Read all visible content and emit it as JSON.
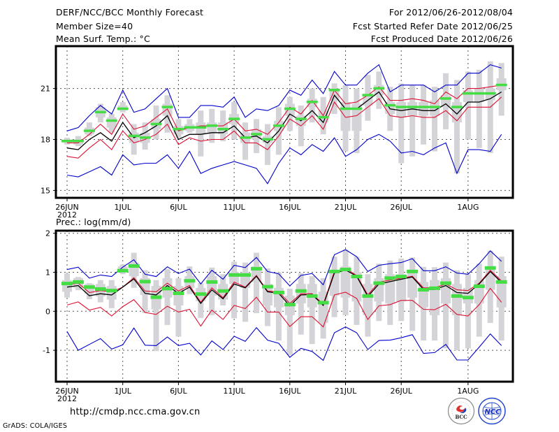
{
  "header": {
    "title": "DERF/NCC/BCC Monthly Forecast",
    "member_size": "Member Size=40",
    "variable_top": "Mean Surf. Temp.: °C",
    "period": "For 2012/06/26-2012/08/04",
    "started": "Fcst Started Refer Date 2012/06/25",
    "produced": "Fcst Produced Date 2012/06/26"
  },
  "footer": {
    "url": "http://cmdp.ncc.cma.gov.cn",
    "credit": "GrADS: COLA/IGES",
    "logo_left": "BCC",
    "logo_right": "NCC"
  },
  "colors": {
    "envelope": "#0000cc",
    "spread": "#dd1133",
    "mean": "#000000",
    "marker": "#44dd44",
    "box": "#d4d4d8",
    "grid": "#555555"
  },
  "chart_data": [
    {
      "type": "line",
      "title": "Mean Surf. Temp.: °C",
      "xlabel": "",
      "ylabel": "",
      "x_start": "2012-06-26",
      "n_days": 40,
      "x_ticks": [
        {
          "day": 0,
          "label": "26JUN",
          "sub": "2012"
        },
        {
          "day": 5,
          "label": "1JUL"
        },
        {
          "day": 10,
          "label": "6JUL"
        },
        {
          "day": 15,
          "label": "11JUL"
        },
        {
          "day": 20,
          "label": "16JUL"
        },
        {
          "day": 25,
          "label": "21JUL"
        },
        {
          "day": 30,
          "label": "26JUL"
        },
        {
          "day": 36,
          "label": "1AUG"
        }
      ],
      "y_ticks": [
        15,
        18,
        21
      ],
      "ylim": [
        14.5,
        23.4
      ],
      "grid": true,
      "series": [
        {
          "name": "max",
          "color_key": "envelope",
          "values": [
            18.5,
            18.7,
            19.4,
            20.0,
            19.5,
            20.9,
            19.6,
            19.8,
            20.4,
            21.0,
            19.3,
            19.3,
            20.0,
            20.0,
            19.9,
            20.5,
            19.3,
            19.8,
            19.7,
            20.0,
            20.9,
            20.6,
            21.5,
            20.7,
            22.0,
            21.2,
            21.2,
            21.9,
            22.4,
            20.8,
            21.2,
            21.2,
            21.2,
            20.8,
            21.2,
            21.2,
            21.9,
            21.9,
            22.4,
            22.2
          ]
        },
        {
          "name": "upper",
          "color_key": "spread",
          "values": [
            17.8,
            17.8,
            18.3,
            18.9,
            18.3,
            19.5,
            18.6,
            18.8,
            19.3,
            19.8,
            18.5,
            18.7,
            18.8,
            18.8,
            18.8,
            19.2,
            18.5,
            18.6,
            18.3,
            19.0,
            19.9,
            19.5,
            20.3,
            19.4,
            20.9,
            20.1,
            20.2,
            20.6,
            21.1,
            20.3,
            20.3,
            20.4,
            20.3,
            20.1,
            20.8,
            20.4,
            21.0,
            21.0,
            21.1,
            21.2
          ]
        },
        {
          "name": "mean",
          "color_key": "mean",
          "values": [
            17.5,
            17.4,
            18.0,
            18.4,
            17.9,
            19.0,
            18.1,
            18.4,
            18.8,
            19.4,
            18.0,
            18.3,
            18.3,
            18.4,
            18.4,
            18.8,
            18.1,
            18.2,
            17.8,
            18.5,
            19.5,
            19.1,
            19.7,
            19.0,
            20.6,
            19.8,
            19.8,
            20.3,
            20.8,
            19.8,
            19.7,
            19.8,
            19.7,
            19.7,
            20.1,
            19.5,
            20.2,
            20.2,
            20.4,
            20.8
          ]
        },
        {
          "name": "lower",
          "color_key": "spread",
          "values": [
            17.0,
            16.9,
            17.5,
            18.0,
            17.4,
            18.5,
            17.8,
            18.0,
            18.3,
            18.9,
            17.7,
            18.1,
            17.9,
            18.0,
            18.0,
            18.5,
            17.8,
            17.8,
            17.4,
            18.2,
            19.2,
            18.8,
            19.4,
            18.6,
            20.2,
            19.3,
            19.4,
            19.9,
            20.4,
            19.4,
            19.3,
            19.4,
            19.3,
            19.3,
            19.7,
            19.1,
            19.9,
            19.9,
            19.9,
            20.5
          ]
        },
        {
          "name": "min",
          "color_key": "envelope",
          "values": [
            15.9,
            15.8,
            16.1,
            16.4,
            15.9,
            17.1,
            16.5,
            16.6,
            16.6,
            17.1,
            16.3,
            17.3,
            16.0,
            16.3,
            16.5,
            16.7,
            16.5,
            16.3,
            15.4,
            16.6,
            17.5,
            17.1,
            17.7,
            17.3,
            18.1,
            17.0,
            17.4,
            18.0,
            18.3,
            17.9,
            17.2,
            17.3,
            17.1,
            17.5,
            17.8,
            16.0,
            17.4,
            17.4,
            17.3,
            18.3
          ]
        },
        {
          "name": "marker",
          "color_key": "marker",
          "values": [
            17.9,
            17.9,
            18.5,
            19.6,
            19.1,
            19.8,
            18.2,
            18.1,
            18.9,
            19.9,
            18.6,
            18.7,
            18.7,
            18.8,
            18.6,
            19.2,
            18.1,
            18.3,
            18.0,
            18.8,
            19.8,
            19.2,
            20.2,
            19.3,
            20.9,
            19.8,
            19.8,
            20.6,
            21.0,
            20.0,
            19.9,
            19.9,
            19.9,
            19.9,
            20.4,
            19.9,
            20.7,
            20.7,
            20.7,
            21.2
          ]
        }
      ],
      "boxes": {
        "whisker_low": [
          17.7,
          17.6,
          18.2,
          19.0,
          18.4,
          19.6,
          17.1,
          17.4,
          18.0,
          18.4,
          18.1,
          18.4,
          17.0,
          17.8,
          17.9,
          18.0,
          16.8,
          17.2,
          16.5,
          17.1,
          18.5,
          17.6,
          19.0,
          18.3,
          19.5,
          17.3,
          17.2,
          19.1,
          19.8,
          18.5,
          16.6,
          17.0,
          17.7,
          17.3,
          18.6,
          16.0,
          18.0,
          17.5,
          17.2,
          19.4
        ],
        "box_low": [
          17.8,
          17.7,
          18.3,
          19.3,
          18.7,
          19.7,
          17.8,
          17.8,
          18.6,
          19.4,
          18.3,
          18.5,
          18.3,
          18.4,
          18.3,
          18.9,
          17.8,
          18.0,
          17.8,
          18.5,
          19.4,
          18.8,
          19.9,
          19.0,
          20.3,
          18.5,
          18.5,
          20.0,
          20.6,
          19.5,
          19.3,
          19.4,
          19.4,
          19.4,
          19.9,
          19.0,
          20.2,
          20.2,
          20.3,
          20.9
        ],
        "box_high": [
          18.0,
          18.0,
          18.7,
          19.9,
          19.3,
          20.0,
          18.4,
          18.4,
          19.2,
          20.1,
          18.8,
          18.9,
          19.0,
          19.0,
          19.0,
          19.5,
          18.4,
          18.6,
          18.2,
          19.1,
          20.1,
          19.4,
          20.4,
          19.7,
          21.0,
          20.2,
          20.1,
          20.7,
          21.2,
          20.2,
          20.2,
          20.2,
          20.2,
          20.3,
          20.6,
          20.2,
          20.9,
          21.0,
          21.0,
          21.6
        ],
        "whisker_high": [
          18.1,
          18.2,
          19.0,
          20.1,
          19.5,
          20.2,
          18.9,
          19.0,
          20.0,
          20.6,
          19.2,
          19.2,
          19.7,
          19.8,
          19.7,
          20.2,
          19.0,
          19.2,
          18.9,
          19.9,
          20.5,
          20.0,
          21.0,
          20.5,
          21.3,
          21.2,
          21.0,
          21.8,
          22.0,
          21.1,
          21.3,
          21.2,
          21.2,
          21.1,
          21.9,
          21.5,
          22.0,
          22.1,
          22.6,
          22.5
        ]
      }
    },
    {
      "type": "line",
      "title": "Prec.: log(mm/d)",
      "xlabel": "",
      "ylabel": "",
      "x_start": "2012-06-26",
      "n_days": 40,
      "x_ticks": [
        {
          "day": 0,
          "label": "26JUN",
          "sub": "2012"
        },
        {
          "day": 5,
          "label": "1JUL"
        },
        {
          "day": 10,
          "label": "6JUL"
        },
        {
          "day": 15,
          "label": "11JUL"
        },
        {
          "day": 20,
          "label": "16JUL"
        },
        {
          "day": 25,
          "label": "21JUL"
        },
        {
          "day": 30,
          "label": "26JUL"
        },
        {
          "day": 36,
          "label": "1AUG"
        }
      ],
      "y_ticks": [
        -1,
        0,
        1,
        2
      ],
      "ylim": [
        -1.8,
        2.1
      ],
      "grid": true,
      "series": [
        {
          "name": "max",
          "color_key": "envelope",
          "values": [
            1.07,
            1.13,
            0.85,
            0.93,
            0.89,
            1.13,
            1.32,
            0.95,
            0.89,
            1.14,
            0.97,
            1.08,
            0.7,
            1.05,
            0.82,
            1.18,
            1.12,
            1.38,
            1.02,
            0.96,
            0.65,
            0.92,
            0.97,
            0.68,
            1.45,
            1.58,
            1.4,
            1.02,
            1.18,
            1.22,
            1.25,
            1.35,
            1.04,
            1.04,
            1.14,
            0.98,
            0.95,
            1.22,
            1.55,
            1.28
          ]
        },
        {
          "name": "upper",
          "color_key": "spread",
          "values": [
            0.68,
            0.72,
            0.48,
            0.53,
            0.5,
            0.62,
            0.86,
            0.52,
            0.5,
            0.72,
            0.52,
            0.66,
            0.23,
            0.6,
            0.35,
            0.75,
            0.62,
            0.92,
            0.52,
            0.5,
            0.2,
            0.45,
            0.45,
            0.18,
            1.02,
            1.1,
            0.92,
            0.42,
            0.75,
            0.8,
            0.85,
            0.9,
            0.6,
            0.6,
            0.7,
            0.55,
            0.53,
            0.72,
            1.05,
            0.78
          ]
        },
        {
          "name": "mean",
          "color_key": "mean",
          "values": [
            0.62,
            0.66,
            0.4,
            0.45,
            0.42,
            0.62,
            0.83,
            0.46,
            0.42,
            0.66,
            0.46,
            0.62,
            0.2,
            0.55,
            0.32,
            0.7,
            0.6,
            0.9,
            0.5,
            0.46,
            0.14,
            0.42,
            0.43,
            0.15,
            0.98,
            1.06,
            0.9,
            0.38,
            0.7,
            0.76,
            0.82,
            0.88,
            0.56,
            0.56,
            0.66,
            0.48,
            0.46,
            0.7,
            1.02,
            0.74
          ]
        },
        {
          "name": "lower",
          "color_key": "spread",
          "values": [
            0.16,
            0.24,
            0.03,
            0.1,
            -0.12,
            0.12,
            0.3,
            -0.03,
            -0.08,
            0.13,
            -0.02,
            0.05,
            -0.38,
            0.03,
            -0.21,
            0.15,
            0.07,
            0.36,
            -0.02,
            -0.02,
            -0.39,
            -0.14,
            -0.14,
            -0.4,
            0.42,
            0.49,
            0.33,
            -0.21,
            0.14,
            0.17,
            0.28,
            0.28,
            0.05,
            0.04,
            0.18,
            -0.08,
            -0.12,
            0.17,
            0.59,
            0.23
          ]
        },
        {
          "name": "min",
          "color_key": "envelope",
          "values": [
            -0.52,
            -1.0,
            -0.85,
            -0.7,
            -0.97,
            -0.86,
            -0.43,
            -0.87,
            -0.88,
            -0.66,
            -0.88,
            -0.82,
            -1.12,
            -0.76,
            -0.98,
            -0.64,
            -0.77,
            -0.42,
            -0.74,
            -0.82,
            -1.18,
            -0.95,
            -1.03,
            -1.26,
            -0.55,
            -0.4,
            -0.55,
            -0.98,
            -0.75,
            -0.74,
            -0.68,
            -0.6,
            -1.08,
            -1.06,
            -0.85,
            -1.25,
            -1.25,
            -0.92,
            -0.58,
            -0.88
          ]
        },
        {
          "name": "marker",
          "color_key": "marker",
          "values": [
            0.72,
            0.76,
            0.63,
            0.58,
            0.54,
            1.05,
            1.17,
            0.77,
            0.37,
            0.59,
            0.47,
            0.79,
            0.45,
            0.76,
            0.53,
            0.94,
            0.94,
            1.1,
            0.64,
            0.49,
            0.18,
            0.53,
            0.4,
            0.23,
            1.03,
            1.08,
            0.9,
            0.4,
            0.73,
            0.86,
            0.9,
            1.03,
            0.56,
            0.6,
            0.73,
            0.4,
            0.36,
            0.65,
            1.12,
            0.76
          ]
        }
      ],
      "boxes": {
        "whisker_low": [
          0.35,
          0.54,
          0.31,
          0.23,
          0.08,
          0.95,
          0.6,
          -0.05,
          -1.02,
          -0.35,
          -0.65,
          0.44,
          -0.17,
          -0.1,
          0.15,
          -0.18,
          -0.27,
          -0.05,
          -0.38,
          -0.75,
          -1.12,
          -0.6,
          -0.84,
          -0.7,
          -0.15,
          -0.1,
          -0.35,
          -0.65,
          -0.25,
          -0.35,
          -0.25,
          -0.5,
          -0.75,
          -0.75,
          -0.95,
          -1.0,
          -0.95,
          -0.65,
          -0.3,
          -0.75
        ],
        "box_low": [
          0.5,
          0.6,
          0.45,
          0.38,
          0.3,
          1.0,
          0.9,
          0.42,
          0.05,
          0.35,
          0.15,
          0.6,
          0.26,
          0.4,
          0.3,
          0.7,
          0.6,
          0.75,
          0.15,
          0.1,
          -0.1,
          0.2,
          0.1,
          -0.3,
          0.4,
          0.35,
          0.25,
          -0.1,
          0.25,
          0.2,
          0.25,
          0.35,
          0.1,
          -0.1,
          0.2,
          -0.1,
          0.2,
          0.2,
          0.55,
          0.1
        ],
        "box_high": [
          0.8,
          0.85,
          0.7,
          0.7,
          0.65,
          1.15,
          1.25,
          0.85,
          0.65,
          0.85,
          0.65,
          0.9,
          0.6,
          0.9,
          0.7,
          1.0,
          1.0,
          1.15,
          0.7,
          0.6,
          0.4,
          0.7,
          0.7,
          0.5,
          1.05,
          1.15,
          1.0,
          0.7,
          0.85,
          0.95,
          0.95,
          1.05,
          0.75,
          0.8,
          0.85,
          0.7,
          0.6,
          0.8,
          1.1,
          0.9
        ],
        "whisker_high": [
          0.97,
          0.88,
          0.72,
          0.8,
          0.8,
          1.2,
          1.5,
          1.05,
          0.8,
          1.08,
          0.85,
          1.15,
          0.72,
          1.12,
          0.95,
          1.27,
          1.25,
          1.5,
          1.1,
          1.0,
          0.58,
          0.98,
          0.9,
          0.85,
          1.4,
          1.58,
          1.4,
          0.95,
          1.22,
          1.3,
          1.35,
          1.38,
          1.14,
          1.13,
          1.25,
          1.05,
          0.95,
          1.22,
          1.55,
          1.4
        ]
      }
    }
  ]
}
